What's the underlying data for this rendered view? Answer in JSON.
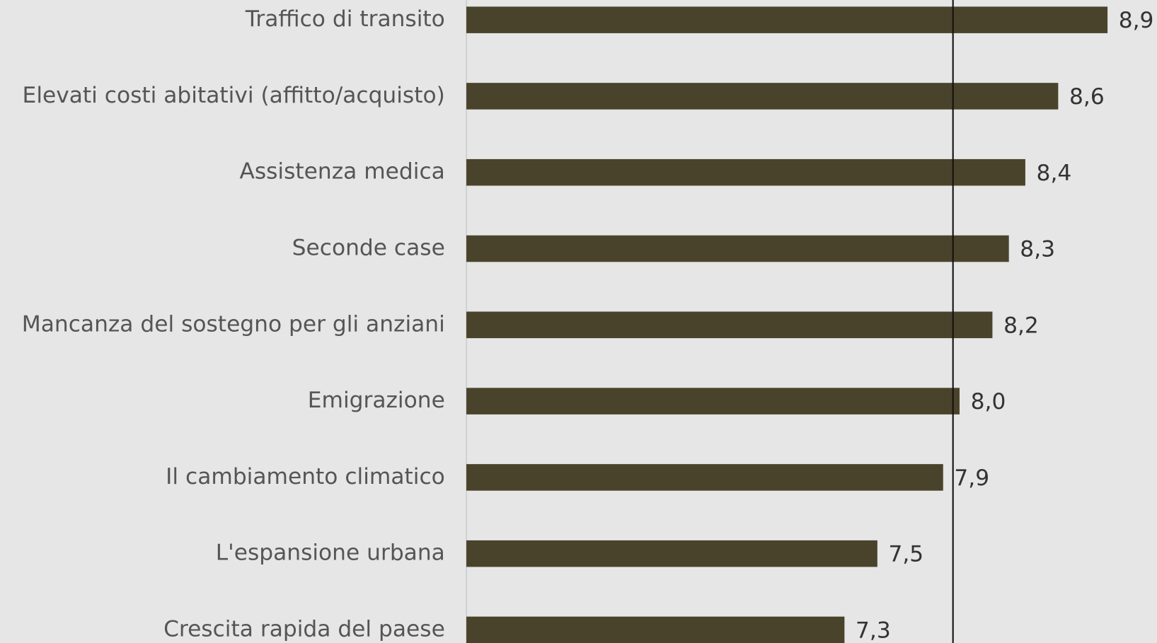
{
  "chart_data": {
    "type": "hbar",
    "categories": [
      "Traffico di transito",
      "Elevati costi abitativi (affitto/acquisto)",
      "Assistenza medica",
      "Seconde case",
      "Mancanza del sostegno per gli anziani",
      "Emigrazione",
      "Il cambiamento climatico",
      "L'espansione urbana",
      "Crescita rapida del paese"
    ],
    "values": [
      8.9,
      8.6,
      8.4,
      8.3,
      8.2,
      8.0,
      7.9,
      7.5,
      7.3
    ],
    "value_labels": [
      "8,9",
      "8,6",
      "8,4",
      "8,3",
      "8,2",
      "8,0",
      "7,9",
      "7,5",
      "7,3"
    ],
    "color": "#4a432b",
    "xlim": [
      5,
      9.2
    ],
    "reference_line": 7.96
  }
}
